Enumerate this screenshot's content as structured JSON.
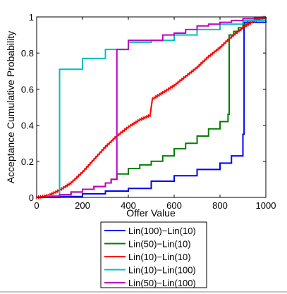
{
  "chart_data": {
    "type": "line",
    "title": "",
    "xlabel": "Offer Value",
    "ylabel": "Acceptance Cumulative  Probability",
    "xlim": [
      0,
      1000
    ],
    "ylim": [
      0,
      1
    ],
    "xticks": [
      0,
      200,
      400,
      600,
      800,
      1000
    ],
    "yticks": [
      0,
      0.2,
      0.4,
      0.6,
      0.8,
      1
    ],
    "xtick_labels": [
      "0",
      "200",
      "400",
      "600",
      "800",
      "1000"
    ],
    "ytick_labels": [
      "0",
      "0.2",
      "0.4",
      "0.6",
      "0.8",
      "1"
    ],
    "grid": false,
    "legend_position": "below",
    "series": [
      {
        "name": "Lin(100)−Lin(10)",
        "color": "#0000ff",
        "step": true,
        "points": [
          [
            0,
            0
          ],
          [
            100,
            0.005
          ],
          [
            200,
            0.02
          ],
          [
            300,
            0.035
          ],
          [
            400,
            0.05
          ],
          [
            500,
            0.09
          ],
          [
            600,
            0.12
          ],
          [
            700,
            0.155
          ],
          [
            800,
            0.19
          ],
          [
            850,
            0.23
          ],
          [
            900,
            0.35
          ],
          [
            905,
            0.97
          ],
          [
            1000,
            1
          ]
        ]
      },
      {
        "name": "Lin(50)−Lin(10)",
        "color": "#008000",
        "step": true,
        "points": [
          [
            0,
            0
          ],
          [
            50,
            0.005
          ],
          [
            100,
            0.015
          ],
          [
            150,
            0.03
          ],
          [
            200,
            0.045
          ],
          [
            250,
            0.06
          ],
          [
            300,
            0.08
          ],
          [
            325,
            0.1
          ],
          [
            350,
            0.13
          ],
          [
            400,
            0.16
          ],
          [
            450,
            0.18
          ],
          [
            500,
            0.2
          ],
          [
            550,
            0.23
          ],
          [
            600,
            0.27
          ],
          [
            650,
            0.3
          ],
          [
            700,
            0.34
          ],
          [
            750,
            0.38
          ],
          [
            800,
            0.42
          ],
          [
            835,
            0.46
          ],
          [
            840,
            0.9
          ],
          [
            860,
            0.92
          ],
          [
            880,
            0.94
          ],
          [
            900,
            0.96
          ],
          [
            920,
            0.98
          ],
          [
            950,
            0.99
          ],
          [
            1000,
            1
          ]
        ]
      },
      {
        "name": "Lin(10)−Lin(10)",
        "color": "#ff0000",
        "step": false,
        "points": [
          [
            0,
            0
          ],
          [
            50,
            0.01
          ],
          [
            100,
            0.04
          ],
          [
            150,
            0.08
          ],
          [
            200,
            0.14
          ],
          [
            250,
            0.21
          ],
          [
            300,
            0.28
          ],
          [
            350,
            0.34
          ],
          [
            400,
            0.39
          ],
          [
            450,
            0.43
          ],
          [
            495,
            0.455
          ],
          [
            505,
            0.545
          ],
          [
            550,
            0.58
          ],
          [
            600,
            0.62
          ],
          [
            650,
            0.67
          ],
          [
            700,
            0.72
          ],
          [
            750,
            0.78
          ],
          [
            800,
            0.83
          ],
          [
            850,
            0.89
          ],
          [
            900,
            0.94
          ],
          [
            950,
            0.98
          ],
          [
            1000,
            1
          ]
        ]
      },
      {
        "name": "Lin(10)−Lin(100)",
        "color": "#00bfbf",
        "step": true,
        "points": [
          [
            0,
            0
          ],
          [
            50,
            0.01
          ],
          [
            100,
            0.71
          ],
          [
            200,
            0.77
          ],
          [
            300,
            0.82
          ],
          [
            400,
            0.86
          ],
          [
            500,
            0.87
          ],
          [
            600,
            0.9
          ],
          [
            700,
            0.93
          ],
          [
            800,
            0.96
          ],
          [
            900,
            0.98
          ],
          [
            1000,
            1
          ]
        ]
      },
      {
        "name": "Lin(50)−Lin(100)",
        "color": "#bf00bf",
        "step": true,
        "points": [
          [
            0,
            0
          ],
          [
            50,
            0.005
          ],
          [
            100,
            0.015
          ],
          [
            150,
            0.03
          ],
          [
            200,
            0.045
          ],
          [
            250,
            0.06
          ],
          [
            300,
            0.08
          ],
          [
            325,
            0.1
          ],
          [
            350,
            0.82
          ],
          [
            400,
            0.87
          ],
          [
            500,
            0.87
          ],
          [
            550,
            0.9
          ],
          [
            600,
            0.91
          ],
          [
            650,
            0.93
          ],
          [
            700,
            0.95
          ],
          [
            750,
            0.96
          ],
          [
            800,
            0.97
          ],
          [
            850,
            0.98
          ],
          [
            900,
            0.99
          ],
          [
            950,
            0.995
          ],
          [
            1000,
            1
          ]
        ]
      }
    ]
  }
}
